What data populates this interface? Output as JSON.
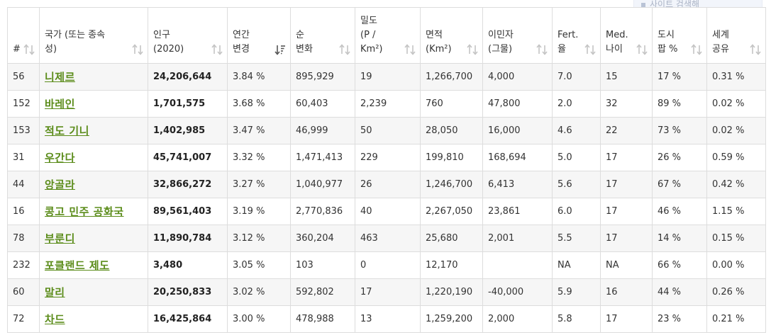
{
  "top_button": {
    "label": "사이트 검색해"
  },
  "table": {
    "headers": [
      {
        "lines": [
          "#"
        ],
        "sort": "both"
      },
      {
        "lines": [
          "국가 (또는 종속",
          "성)"
        ],
        "sort": "both"
      },
      {
        "lines": [
          "인구",
          "(2020)"
        ],
        "sort": "both"
      },
      {
        "lines": [
          "연간",
          "변경"
        ],
        "sort": "desc-active"
      },
      {
        "lines": [
          "순",
          "변화"
        ],
        "sort": "both"
      },
      {
        "lines": [
          "밀도",
          "(P /",
          "Km²)"
        ],
        "sort": "both"
      },
      {
        "lines": [
          "면적",
          "(Km²)"
        ],
        "sort": "both"
      },
      {
        "lines": [
          "이민자",
          "(그물)"
        ],
        "sort": "both"
      },
      {
        "lines": [
          "Fert.",
          "율"
        ],
        "sort": "both"
      },
      {
        "lines": [
          "Med.",
          "나이"
        ],
        "sort": "both"
      },
      {
        "lines": [
          "도시",
          "팝 %"
        ],
        "sort": "both"
      },
      {
        "lines": [
          "세계",
          "공유"
        ],
        "sort": "both"
      }
    ],
    "rows": [
      [
        "56",
        "니제르",
        "24,206,644",
        "3.84 %",
        "895,929",
        "19",
        "1,266,700",
        "4,000",
        "7.0",
        "15",
        "17 %",
        "0.31 %"
      ],
      [
        "152",
        "바레인",
        "1,701,575",
        "3.68 %",
        "60,403",
        "2,239",
        "760",
        "47,800",
        "2.0",
        "32",
        "89 %",
        "0.02 %"
      ],
      [
        "153",
        "적도 기니",
        "1,402,985",
        "3.47 %",
        "46,999",
        "50",
        "28,050",
        "16,000",
        "4.6",
        "22",
        "73 %",
        "0.02 %"
      ],
      [
        "31",
        "우간다",
        "45,741,007",
        "3.32 %",
        "1,471,413",
        "229",
        "199,810",
        "168,694",
        "5.0",
        "17",
        "26 %",
        "0.59 %"
      ],
      [
        "44",
        "앙골라",
        "32,866,272",
        "3.27 %",
        "1,040,977",
        "26",
        "1,246,700",
        "6,413",
        "5.6",
        "17",
        "67 %",
        "0.42 %"
      ],
      [
        "16",
        "콩고 민주 공화국",
        "89,561,403",
        "3.19 %",
        "2,770,836",
        "40",
        "2,267,050",
        "23,861",
        "6.0",
        "17",
        "46 %",
        "1.15 %"
      ],
      [
        "78",
        "부룬디",
        "11,890,784",
        "3.12 %",
        "360,204",
        "463",
        "25,680",
        "2,001",
        "5.5",
        "17",
        "14 %",
        "0.15 %"
      ],
      [
        "232",
        "포클랜드 제도",
        "3,480",
        "3.05 %",
        "103",
        "0",
        "12,170",
        "",
        "NA",
        "NA",
        "66 %",
        "0.00 %"
      ],
      [
        "60",
        "말리",
        "20,250,833",
        "3.02 %",
        "592,802",
        "17",
        "1,220,190",
        "-40,000",
        "5.9",
        "16",
        "44 %",
        "0.26 %"
      ],
      [
        "72",
        "차드",
        "16,425,864",
        "3.00 %",
        "478,988",
        "13",
        "1,259,200",
        "2,000",
        "5.8",
        "17",
        "23 %",
        "0.21 %"
      ]
    ]
  }
}
